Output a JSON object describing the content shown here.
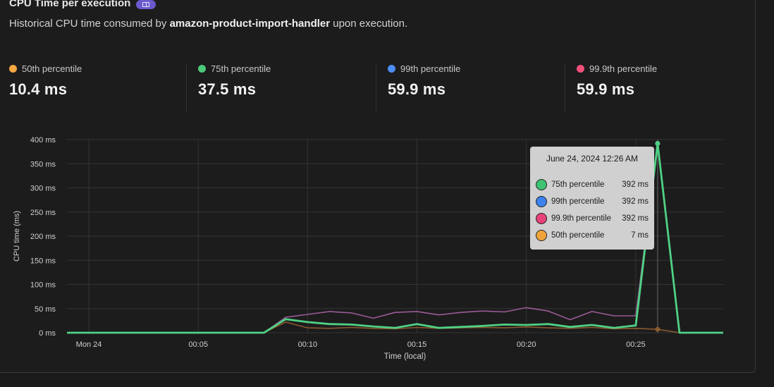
{
  "header": {
    "title": "CPU Time per execution",
    "subtitle_prefix": "Historical CPU time consumed by ",
    "subtitle_function": "amazon-product-import-handler",
    "subtitle_suffix": " upon execution."
  },
  "stats": [
    {
      "label": "50th percentile",
      "value": "10.4 ms",
      "color": "#f5a742"
    },
    {
      "label": "75th percentile",
      "value": "37.5 ms",
      "color": "#4cc97a"
    },
    {
      "label": "99th percentile",
      "value": "59.9 ms",
      "color": "#4c8df6"
    },
    {
      "label": "99.9th percentile",
      "value": "59.9 ms",
      "color": "#f0507a"
    }
  ],
  "tooltip": {
    "date": "June 24, 2024 12:26 AM",
    "rows": [
      {
        "name": "75th percentile",
        "value": "392 ms",
        "color": "#3ec271"
      },
      {
        "name": "99th percentile",
        "value": "392 ms",
        "color": "#3d82f0"
      },
      {
        "name": "99.9th percentile",
        "value": "392 ms",
        "color": "#e8427a"
      },
      {
        "name": "50th percentile",
        "value": "7 ms",
        "color": "#f0a33a"
      }
    ]
  },
  "chart_data": {
    "type": "line",
    "title": "",
    "xlabel": "Time (local)",
    "ylabel": "CPU time (ms)",
    "ylim": [
      0,
      400
    ],
    "xlim": [
      -1,
      29
    ],
    "y_ticks": [
      0,
      50,
      100,
      150,
      200,
      250,
      300,
      350,
      400
    ],
    "y_tick_labels": [
      "0 ms",
      "50 ms",
      "100 ms",
      "150 ms",
      "200 ms",
      "250 ms",
      "300 ms",
      "350 ms",
      "400 ms"
    ],
    "x_ticks": [
      0,
      5,
      10,
      15,
      20,
      25
    ],
    "x_tick_labels": [
      "Mon 24",
      "00:05",
      "00:10",
      "00:15",
      "00:20",
      "00:25"
    ],
    "x_unit": "minutes after 00:00",
    "grid": true,
    "hover_x": 26,
    "series": [
      {
        "name": "99.9th percentile",
        "color": "#9a5a96",
        "x": [
          -1,
          0,
          1,
          2,
          3,
          4,
          5,
          6,
          7,
          8,
          9,
          10,
          11,
          12,
          13,
          14,
          15,
          16,
          17,
          18,
          19,
          20,
          21,
          22,
          23,
          24,
          25,
          26,
          27,
          28,
          29
        ],
        "y": [
          0,
          0,
          0,
          0,
          0,
          0,
          0,
          0,
          0,
          0,
          32,
          38,
          44,
          41,
          30,
          42,
          44,
          37,
          42,
          45,
          43,
          52,
          45,
          27,
          44,
          35,
          35,
          392,
          0,
          0,
          0
        ]
      },
      {
        "name": "50th percentile",
        "color": "#8a5a30",
        "x": [
          -1,
          0,
          1,
          2,
          3,
          4,
          5,
          6,
          7,
          8,
          9,
          10,
          11,
          12,
          13,
          14,
          15,
          16,
          17,
          18,
          19,
          20,
          21,
          22,
          23,
          24,
          25,
          26,
          27,
          28,
          29
        ],
        "y": [
          0,
          0,
          0,
          0,
          0,
          0,
          0,
          0,
          0,
          0,
          22,
          10,
          9,
          11,
          9,
          8,
          11,
          9,
          10,
          11,
          10,
          12,
          10,
          9,
          11,
          8,
          9,
          7,
          0,
          0,
          0
        ]
      },
      {
        "name": "75th percentile",
        "color": "#4fd184",
        "x": [
          -1,
          0,
          1,
          2,
          3,
          4,
          5,
          6,
          7,
          8,
          9,
          10,
          11,
          12,
          13,
          14,
          15,
          16,
          17,
          18,
          19,
          20,
          21,
          22,
          23,
          24,
          25,
          26,
          27,
          28,
          29
        ],
        "y": [
          0,
          0,
          0,
          0,
          0,
          0,
          0,
          0,
          0,
          0,
          28,
          22,
          18,
          17,
          13,
          10,
          18,
          10,
          12,
          14,
          17,
          16,
          18,
          12,
          16,
          10,
          15,
          392,
          0,
          0,
          0
        ]
      }
    ]
  }
}
